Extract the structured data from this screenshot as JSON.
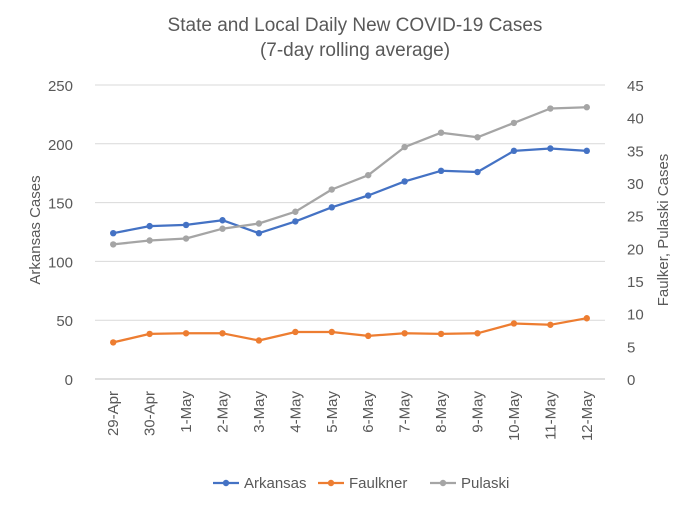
{
  "chart_data": {
    "type": "line",
    "title": "State and Local Daily New COVID-19 Cases",
    "subtitle": "(7-day rolling average)",
    "categories": [
      "29-Apr",
      "30-Apr",
      "1-May",
      "2-May",
      "3-May",
      "4-May",
      "5-May",
      "6-May",
      "7-May",
      "8-May",
      "9-May",
      "10-May",
      "11-May",
      "12-May"
    ],
    "ylabel_left": "Arkansas Cases",
    "ylabel_right": "Faulker, Pulaski Cases",
    "ylim_left": [
      0,
      250
    ],
    "ylim_right": [
      0,
      45
    ],
    "yticks_left": [
      0,
      50,
      100,
      150,
      200,
      250
    ],
    "yticks_right": [
      0,
      5,
      10,
      15,
      20,
      25,
      30,
      35,
      40,
      45
    ],
    "grid": true,
    "legend_position": "bottom",
    "series": [
      {
        "name": "Arkansas",
        "axis": "left",
        "color": "#4472C4",
        "values": [
          124,
          130,
          131,
          135,
          124,
          134,
          146,
          156,
          168,
          177,
          176,
          194,
          196,
          194
        ]
      },
      {
        "name": "Faulkner",
        "axis": "right",
        "color": "#ED7D31",
        "values": [
          5.6,
          6.9,
          7.0,
          7.0,
          5.9,
          7.2,
          7.2,
          6.6,
          7.0,
          6.9,
          7.0,
          8.5,
          8.3,
          9.3
        ]
      },
      {
        "name": "Pulaski",
        "axis": "right",
        "color": "#A5A5A5",
        "values": [
          20.6,
          21.2,
          21.5,
          23.0,
          23.8,
          25.6,
          29.0,
          31.2,
          35.5,
          37.7,
          37.0,
          39.2,
          41.4,
          41.6
        ]
      }
    ]
  }
}
